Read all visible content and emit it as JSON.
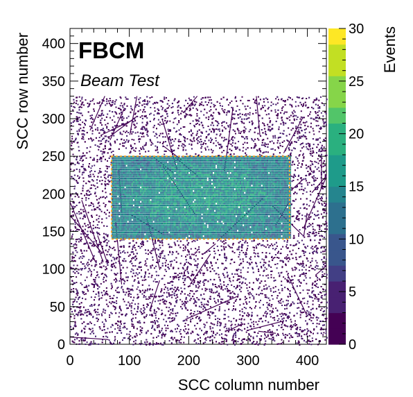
{
  "chart_data": {
    "type": "heatmap",
    "title": "FBCM",
    "subtitle": "Beam Test",
    "xlabel": "SCC column number",
    "ylabel": "SCC row number",
    "zlabel": "Events",
    "xlim": [
      0,
      432
    ],
    "ylim": [
      0,
      420
    ],
    "zlim": [
      0,
      30
    ],
    "xticks": [
      "0",
      "100",
      "200",
      "300",
      "400"
    ],
    "yticks": [
      "0",
      "50",
      "100",
      "150",
      "200",
      "250",
      "300",
      "350",
      "400"
    ],
    "zticks": [
      "0",
      "5",
      "10",
      "15",
      "20",
      "25",
      "30"
    ],
    "colormap": "viridis",
    "highlight_region": {
      "x": [
        70,
        370
      ],
      "y": [
        140,
        250
      ],
      "border_color": "#f2a531",
      "fill_level_typical": 13
    },
    "background": {
      "sparse_noise_y_max": 330,
      "typical_level": 1
    }
  }
}
